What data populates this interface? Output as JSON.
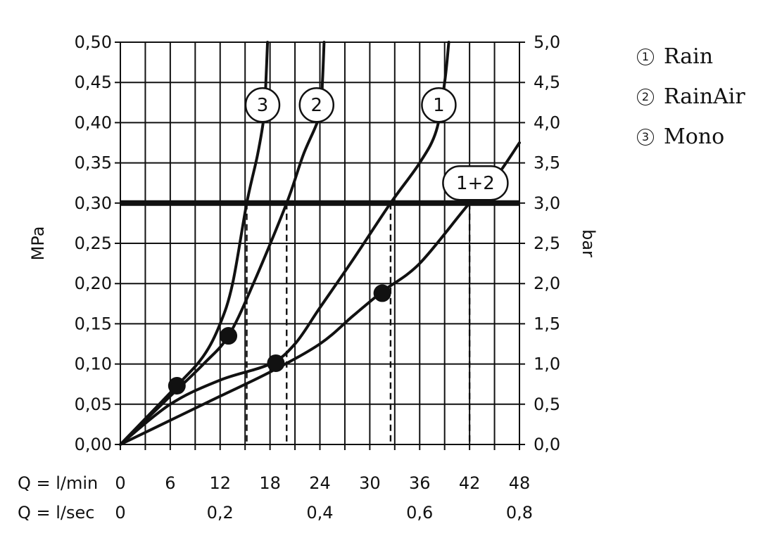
{
  "chart_data": {
    "type": "line",
    "y_left_label": "MPa",
    "y_right_label": "bar",
    "y_left_ticks": [
      "0,00",
      "0,05",
      "0,10",
      "0,15",
      "0,20",
      "0,25",
      "0,30",
      "0,35",
      "0,40",
      "0,45",
      "0,50"
    ],
    "y_right_ticks": [
      "0,0",
      "0,5",
      "1,0",
      "1,5",
      "2,0",
      "2,5",
      "3,0",
      "3,5",
      "4,0",
      "4,5",
      "5,0"
    ],
    "ylim": [
      0,
      0.5
    ],
    "xlim": [
      0,
      48
    ],
    "x_row_label_lmin": "Q = l/min",
    "x_row_label_lsec": "Q = l/sec",
    "x_ticks_lmin": [
      "0",
      "6",
      "12",
      "18",
      "24",
      "30",
      "36",
      "42",
      "48"
    ],
    "x_ticks_lsec": [
      {
        "x": 0,
        "label": "0"
      },
      {
        "x": 12,
        "label": "0,2"
      },
      {
        "x": 24,
        "label": "0,4"
      },
      {
        "x": 36,
        "label": "0,6"
      },
      {
        "x": 48,
        "label": "0,8"
      }
    ],
    "grid": true,
    "reference_line": {
      "y": 0.3
    },
    "series": [
      {
        "label": "1",
        "points": [
          [
            0,
            0
          ],
          [
            6,
            0.05
          ],
          [
            12,
            0.08
          ],
          [
            18,
            0.1
          ],
          [
            21,
            0.125
          ],
          [
            24,
            0.17
          ],
          [
            28,
            0.23
          ],
          [
            32.5,
            0.3
          ],
          [
            36,
            0.35
          ],
          [
            38,
            0.39
          ],
          [
            39,
            0.45
          ],
          [
            39.5,
            0.5
          ]
        ]
      },
      {
        "label": "2",
        "points": [
          [
            0,
            0
          ],
          [
            6,
            0.06
          ],
          [
            10,
            0.1
          ],
          [
            13,
            0.135
          ],
          [
            16,
            0.2
          ],
          [
            20,
            0.3
          ],
          [
            22,
            0.36
          ],
          [
            24,
            0.41
          ],
          [
            24.3,
            0.45
          ],
          [
            24.5,
            0.5
          ]
        ]
      },
      {
        "label": "3",
        "points": [
          [
            0,
            0
          ],
          [
            6.8,
            0.073
          ],
          [
            10,
            0.11
          ],
          [
            12,
            0.15
          ],
          [
            13.5,
            0.2
          ],
          [
            15.2,
            0.3
          ],
          [
            16.5,
            0.36
          ],
          [
            17.3,
            0.41
          ],
          [
            17.5,
            0.45
          ],
          [
            17.7,
            0.5
          ]
        ]
      },
      {
        "label": "1+2",
        "points": [
          [
            0,
            0
          ],
          [
            6,
            0.03
          ],
          [
            12,
            0.06
          ],
          [
            18,
            0.09
          ],
          [
            24,
            0.125
          ],
          [
            28,
            0.16
          ],
          [
            31.5,
            0.19
          ],
          [
            36,
            0.225
          ],
          [
            42,
            0.3
          ],
          [
            45,
            0.33
          ],
          [
            48,
            0.375
          ]
        ]
      }
    ],
    "markers": [
      [
        6.8,
        0.073
      ],
      [
        13,
        0.135
      ],
      [
        18.7,
        0.101
      ],
      [
        31.5,
        0.188
      ]
    ],
    "dashed_drops": [
      15.2,
      20,
      32.5,
      42
    ],
    "legend": [
      {
        "num": "1",
        "name": "Rain"
      },
      {
        "num": "2",
        "name": "RainAir"
      },
      {
        "num": "3",
        "name": "Mono"
      }
    ]
  }
}
